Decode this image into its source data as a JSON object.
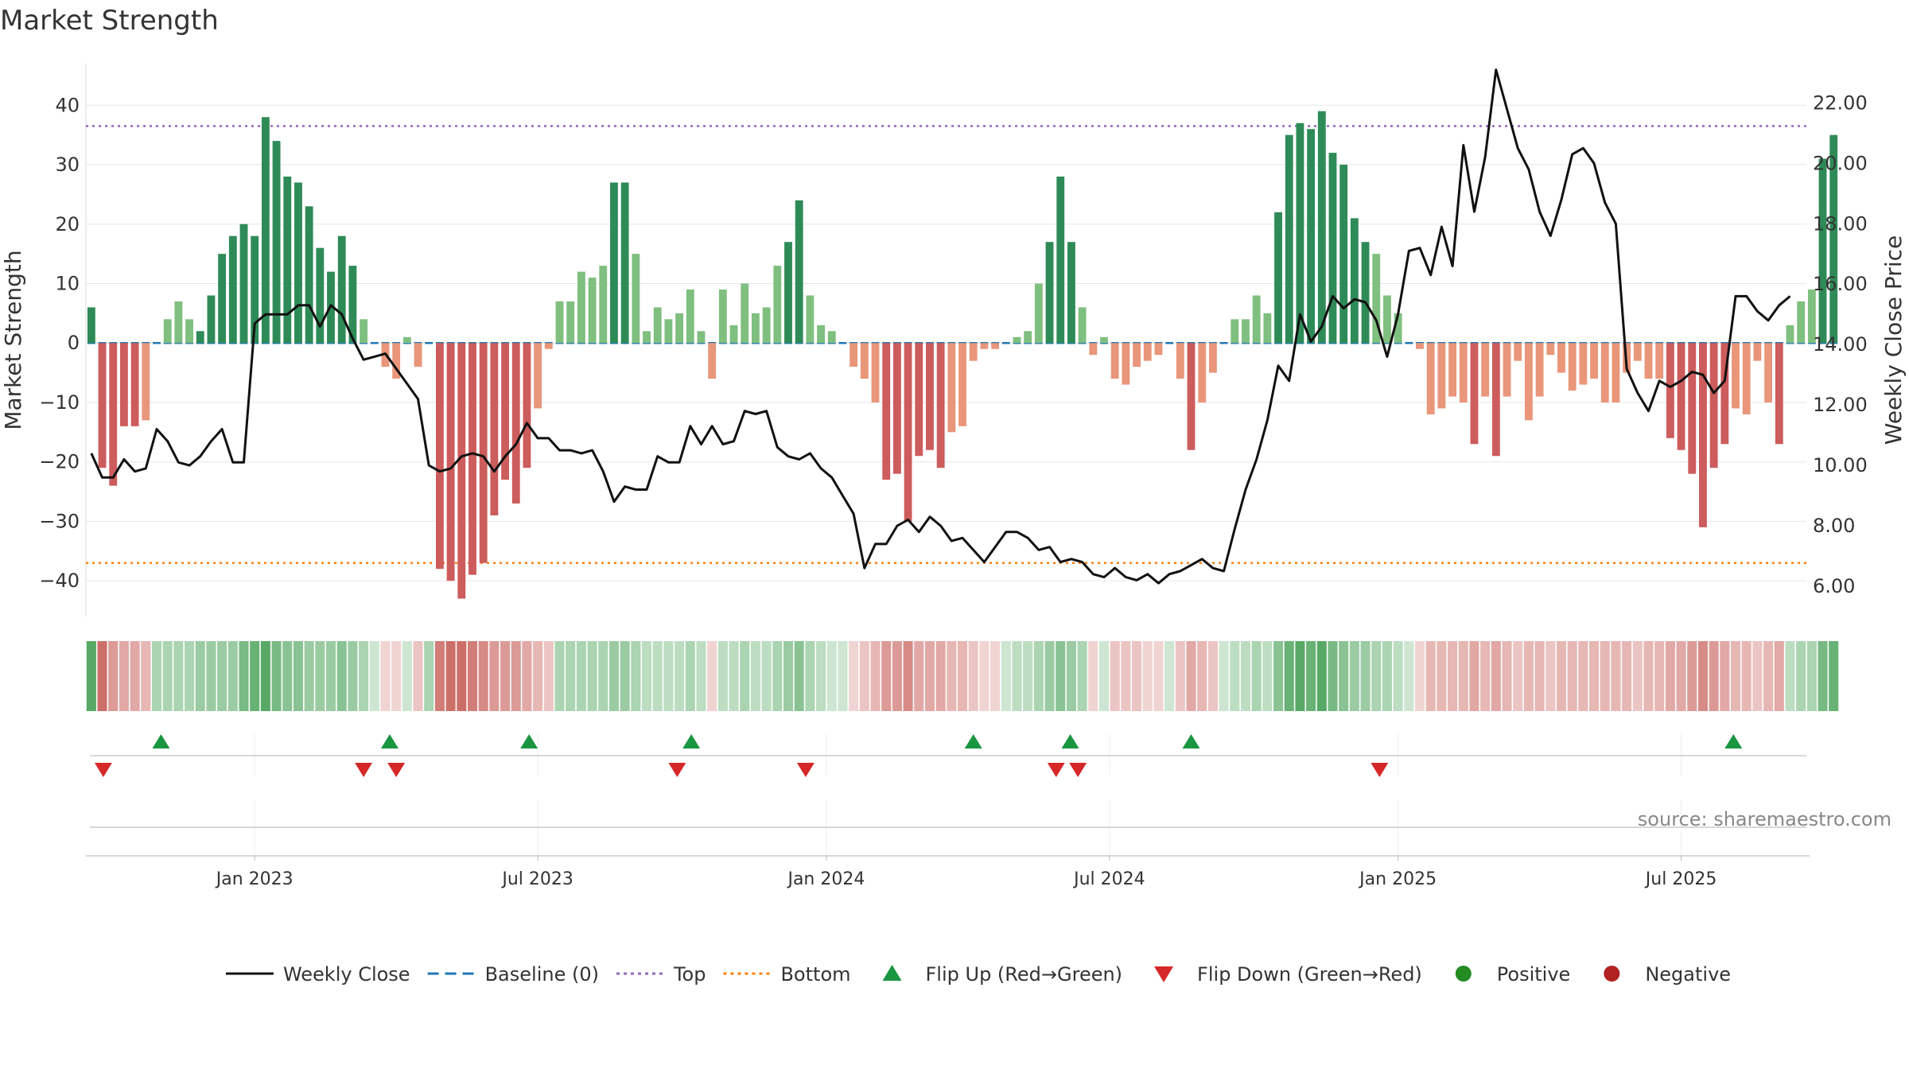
{
  "title": "Market Strength",
  "source_text": "source: sharemaestro.com",
  "colors": {
    "strong_green": "#2e8b57",
    "light_green": "#7fbf7f",
    "strong_red": "#cd5c5c",
    "light_red": "#e9967a",
    "close_line": "#111111",
    "baseline": "#1f77b4",
    "top_line": "#9467bd",
    "bottom_line": "#ff7f0e",
    "flip_up": "#1a9641",
    "flip_down": "#d62728",
    "positive": "#228b22",
    "negative": "#b22222",
    "grid": "#e6e6e6"
  },
  "chart_data": {
    "type": "bar",
    "ylabel": "Market Strength",
    "y2label": "Weekly Close Price",
    "ylim": [
      -46,
      47
    ],
    "y2lim": [
      5.0,
      23.3
    ],
    "yticks": [
      "40",
      "30",
      "20",
      "10",
      "0",
      "−10",
      "−20",
      "−30",
      "−40"
    ],
    "ytick_values": [
      40,
      30,
      20,
      10,
      0,
      -10,
      -20,
      -30,
      -40
    ],
    "y2ticks": [
      "22.00",
      "20.00",
      "18.00",
      "16.00",
      "14.00",
      "12.00",
      "10.00",
      "8.00",
      "6.00"
    ],
    "y2tick_values": [
      22,
      20,
      18,
      16,
      14,
      12,
      10,
      8,
      6
    ],
    "xticks": [
      "Jan 2023",
      "Jul 2023",
      "Jan 2024",
      "Jul 2024",
      "Jan 2025",
      "Jul 2025"
    ],
    "xtick_weeks": [
      15,
      41,
      67.5,
      93.5,
      120,
      146
    ],
    "top_level": 36.5,
    "bottom_level": -37,
    "n_weeks": 158,
    "strength": [
      6,
      -21,
      -24,
      -14,
      -14,
      -13,
      0,
      4,
      7,
      4,
      2,
      8,
      15,
      18,
      20,
      18,
      38,
      34,
      28,
      27,
      23,
      16,
      12,
      18,
      13,
      4,
      0,
      -4,
      -6,
      1,
      -4,
      0,
      -38,
      -40,
      -43,
      -39,
      -37,
      -29,
      -23,
      -27,
      -21,
      -11,
      -1,
      7,
      7,
      12,
      11,
      13,
      27,
      27,
      15,
      2,
      6,
      4,
      5,
      9,
      2,
      -6,
      9,
      3,
      10,
      5,
      6,
      13,
      17,
      24,
      8,
      3,
      2,
      0,
      -4,
      -6,
      -10,
      -23,
      -22,
      -30,
      -19,
      -18,
      -21,
      -15,
      -14,
      -3,
      -1,
      -1,
      0,
      1,
      2,
      10,
      17,
      28,
      17,
      6,
      -2,
      1,
      -6,
      -7,
      -4,
      -3,
      -2,
      0,
      -6,
      -18,
      -10,
      -5,
      0,
      4,
      4,
      8,
      5,
      22,
      35,
      37,
      36,
      39,
      32,
      30,
      21,
      17,
      15,
      8,
      5,
      0,
      -1,
      -12,
      -11,
      -9,
      -10,
      -17,
      -9,
      -19,
      -9,
      -3,
      -13,
      -9,
      -2,
      -5,
      -8,
      -7,
      -6,
      -10,
      -10,
      -5,
      -3,
      -6,
      -6,
      -16,
      -18,
      -22,
      -31,
      -21,
      -17,
      -11,
      -12,
      -3,
      -10,
      -17,
      3,
      7,
      9,
      31,
      35
    ],
    "intensity": [
      1,
      1,
      0.7,
      0.6,
      0.6,
      0.5,
      0.5,
      0.5,
      0.5,
      0.5,
      0.6,
      0.6,
      0.6,
      0.6,
      0.8,
      0.9,
      1,
      0.8,
      0.7,
      0.7,
      0.6,
      0.6,
      0.6,
      0.7,
      0.6,
      0.5,
      0.3,
      0.3,
      0.3,
      0.3,
      0.4,
      0.5,
      0.9,
      1,
      1,
      0.9,
      0.8,
      0.7,
      0.7,
      0.7,
      0.6,
      0.5,
      0.4,
      0.5,
      0.5,
      0.5,
      0.5,
      0.5,
      0.6,
      0.6,
      0.5,
      0.4,
      0.4,
      0.4,
      0.4,
      0.5,
      0.4,
      0.3,
      0.4,
      0.4,
      0.5,
      0.4,
      0.4,
      0.5,
      0.6,
      0.7,
      0.5,
      0.4,
      0.3,
      0.3,
      0.3,
      0.4,
      0.5,
      0.7,
      0.7,
      0.8,
      0.6,
      0.6,
      0.6,
      0.5,
      0.5,
      0.4,
      0.3,
      0.3,
      0.3,
      0.4,
      0.4,
      0.5,
      0.6,
      0.7,
      0.6,
      0.5,
      0.3,
      0.3,
      0.4,
      0.4,
      0.4,
      0.3,
      0.3,
      0.3,
      0.4,
      0.6,
      0.5,
      0.4,
      0.3,
      0.4,
      0.4,
      0.5,
      0.4,
      0.7,
      0.9,
      1,
      0.9,
      1,
      0.8,
      0.7,
      0.6,
      0.6,
      0.5,
      0.5,
      0.4,
      0.3,
      0.3,
      0.5,
      0.5,
      0.5,
      0.5,
      0.6,
      0.5,
      0.6,
      0.5,
      0.4,
      0.5,
      0.5,
      0.4,
      0.5,
      0.5,
      0.5,
      0.5,
      0.5,
      0.5,
      0.5,
      0.4,
      0.5,
      0.5,
      0.6,
      0.6,
      0.7,
      0.8,
      0.7,
      0.6,
      0.5,
      0.5,
      0.4,
      0.5,
      0.6,
      0.4,
      0.5,
      0.5,
      0.8,
      0.9
    ],
    "weekly_close": [
      10.4,
      9.6,
      9.6,
      10.2,
      9.8,
      9.9,
      11.2,
      10.8,
      10.1,
      10.0,
      10.3,
      10.8,
      11.2,
      10.1,
      10.1,
      14.7,
      15.0,
      15.0,
      15.0,
      15.3,
      15.3,
      14.6,
      15.3,
      15.0,
      14.2,
      13.5,
      13.6,
      13.7,
      13.2,
      12.7,
      12.2,
      10.0,
      9.8,
      9.9,
      10.3,
      10.4,
      10.3,
      9.8,
      10.3,
      10.7,
      11.4,
      10.9,
      10.9,
      10.5,
      10.5,
      10.4,
      10.5,
      9.8,
      8.8,
      9.3,
      9.2,
      9.2,
      10.3,
      10.1,
      10.1,
      11.3,
      10.7,
      11.3,
      10.7,
      10.8,
      11.8,
      11.7,
      11.8,
      10.6,
      10.3,
      10.2,
      10.4,
      9.9,
      9.6,
      9.0,
      8.4,
      6.6,
      7.4,
      7.4,
      8.0,
      8.2,
      7.8,
      8.3,
      8.0,
      7.5,
      7.6,
      7.2,
      6.8,
      7.3,
      7.8,
      7.8,
      7.6,
      7.2,
      7.3,
      6.8,
      6.9,
      6.8,
      6.4,
      6.3,
      6.6,
      6.3,
      6.2,
      6.4,
      6.1,
      6.4,
      6.5,
      6.7,
      6.9,
      6.6,
      6.5,
      7.9,
      9.2,
      10.2,
      11.5,
      13.3,
      12.8,
      15.0,
      14.1,
      14.6,
      15.6,
      15.2,
      15.5,
      15.4,
      14.8,
      13.6,
      15.0,
      17.1,
      17.2,
      16.3,
      17.9,
      16.6,
      20.6,
      18.4,
      20.2,
      23.1,
      21.8,
      20.5,
      19.8,
      18.4,
      17.6,
      18.8,
      20.3,
      20.5,
      20.0,
      18.7,
      18.0,
      13.2,
      12.4,
      11.8,
      12.8,
      12.6,
      12.8,
      13.1,
      13.0,
      12.4,
      12.8,
      15.6,
      15.6,
      15.1,
      14.8,
      15.3,
      15.6
    ],
    "flip_up_weeks": [
      6.4,
      27.4,
      40.2,
      55.1,
      81,
      89.9,
      101,
      150.8
    ],
    "flip_down_weeks": [
      1.1,
      25,
      28,
      53.8,
      65.6,
      88.6,
      90.6,
      118.3
    ]
  },
  "legend": [
    {
      "label": "Weekly Close",
      "kind": "line-solid",
      "color": "#111111"
    },
    {
      "label": "Baseline (0)",
      "kind": "line-dashed",
      "color": "#1f77b4"
    },
    {
      "label": "Top",
      "kind": "line-dotted",
      "color": "#9467bd"
    },
    {
      "label": "Bottom",
      "kind": "line-dotted",
      "color": "#ff7f0e"
    },
    {
      "label": "Flip Up (Red→Green)",
      "kind": "triangle-up",
      "color": "#1a9641"
    },
    {
      "label": "Flip Down (Green→Red)",
      "kind": "triangle-down",
      "color": "#d62728"
    },
    {
      "label": "Positive",
      "kind": "dot",
      "color": "#228b22"
    },
    {
      "label": "Negative",
      "kind": "dot",
      "color": "#b22222"
    }
  ]
}
